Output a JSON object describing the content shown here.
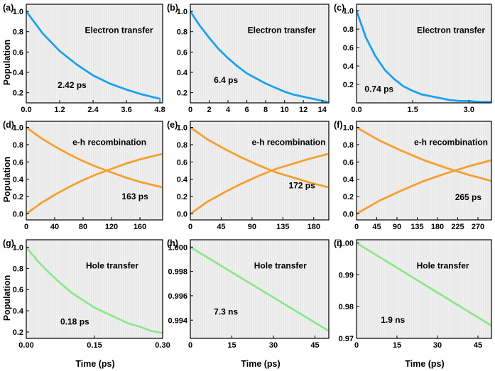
{
  "colors": {
    "electron": "#1ea1f0",
    "eh": "#f5a030",
    "hole": "#8ee68e",
    "plot_bg": "#f1f1f1",
    "grid": "#d2d2d2"
  },
  "figure": {
    "ylabel": "Population",
    "xlabel": "Time (ps)"
  },
  "chart_data": [
    {
      "label": "(a)",
      "type": "line",
      "title": "Electron transfer",
      "annotation": "2.42 ps",
      "xlim": [
        0,
        4.9
      ],
      "ylim": [
        0.1,
        1.07
      ],
      "xticks": [
        "0.0",
        "1.2",
        "2.4",
        "3.6",
        "4.8"
      ],
      "xtick_values": [
        0,
        1.2,
        2.4,
        3.6,
        4.8
      ],
      "yticks": [
        "0.2",
        "0.4",
        "0.6",
        "0.8",
        "1.0"
      ],
      "ytick_values": [
        0.2,
        0.4,
        0.6,
        0.8,
        1.0
      ],
      "series": [
        {
          "x": [
            0,
            0.6,
            1.2,
            1.8,
            2.4,
            3.0,
            3.6,
            4.2,
            4.8
          ],
          "y": [
            1.0,
            0.78,
            0.61,
            0.48,
            0.37,
            0.29,
            0.23,
            0.18,
            0.14
          ],
          "color": "electron"
        }
      ]
    },
    {
      "label": "(b)",
      "type": "line",
      "title": "Electron transfer",
      "annotation": "6.4 ps",
      "xlim": [
        0,
        14.7
      ],
      "ylim": [
        0.1,
        1.07
      ],
      "xticks": [
        "0",
        "2",
        "4",
        "6",
        "8",
        "10",
        "12",
        "14"
      ],
      "xtick_values": [
        0,
        2,
        4,
        6,
        8,
        10,
        12,
        14
      ],
      "yticks": [
        "0.2",
        "0.4",
        "0.6",
        "0.8",
        "1.0"
      ],
      "ytick_values": [
        0.2,
        0.4,
        0.6,
        0.8,
        1.0
      ],
      "series": [
        {
          "x": [
            0,
            1,
            2,
            3,
            4,
            5,
            6,
            7,
            8,
            9,
            10,
            11,
            12,
            13,
            14,
            14.5
          ],
          "y": [
            1.0,
            0.86,
            0.74,
            0.63,
            0.54,
            0.46,
            0.39,
            0.34,
            0.29,
            0.25,
            0.21,
            0.18,
            0.16,
            0.14,
            0.12,
            0.11
          ],
          "color": "electron"
        }
      ]
    },
    {
      "label": "(c)",
      "type": "line",
      "title": "Electron transfer",
      "annotation": "0.74 ps",
      "xlim": [
        0,
        3.6
      ],
      "ylim": [
        0,
        1.07
      ],
      "xticks": [
        "0.0",
        "1.5",
        "3.0"
      ],
      "xtick_values": [
        0,
        1.5,
        3.0
      ],
      "yticks": [
        "0.2",
        "0.4",
        "0.6",
        "0.8",
        "1.0"
      ],
      "ytick_values": [
        0.2,
        0.4,
        0.6,
        0.8,
        1.0
      ],
      "series": [
        {
          "x": [
            0,
            0.25,
            0.5,
            0.75,
            1.0,
            1.25,
            1.5,
            1.75,
            2.0,
            2.25,
            2.5,
            2.75,
            3.0,
            3.25,
            3.5,
            3.6
          ],
          "y": [
            1.0,
            0.71,
            0.51,
            0.36,
            0.26,
            0.18,
            0.13,
            0.09,
            0.07,
            0.05,
            0.03,
            0.02,
            0.02,
            0.01,
            0.01,
            0.01
          ],
          "color": "electron"
        }
      ]
    },
    {
      "label": "(d)",
      "type": "line",
      "title": "e-h recombination",
      "annotation": "163 ps",
      "xlim": [
        0,
        192
      ],
      "ylim": [
        -0.07,
        1.07
      ],
      "xticks": [
        "0",
        "40",
        "80",
        "120",
        "160"
      ],
      "xtick_values": [
        0,
        40,
        80,
        120,
        160
      ],
      "yticks": [
        "0.0",
        "0.2",
        "0.4",
        "0.6",
        "0.8",
        "1.0"
      ],
      "ytick_values": [
        0,
        0.2,
        0.4,
        0.6,
        0.8,
        1.0
      ],
      "series": [
        {
          "x": [
            0,
            20,
            40,
            60,
            80,
            100,
            120,
            140,
            160,
            180,
            190
          ],
          "y": [
            1.0,
            0.88,
            0.78,
            0.69,
            0.61,
            0.54,
            0.48,
            0.42,
            0.37,
            0.33,
            0.31
          ],
          "color": "eh"
        },
        {
          "x": [
            0,
            20,
            40,
            60,
            80,
            100,
            120,
            140,
            160,
            180,
            190
          ],
          "y": [
            0.0,
            0.12,
            0.22,
            0.31,
            0.39,
            0.46,
            0.52,
            0.58,
            0.63,
            0.67,
            0.69
          ],
          "color": "eh"
        }
      ]
    },
    {
      "label": "(e)",
      "type": "line",
      "title": "e-h recombination",
      "annotation": "172 ps",
      "xlim": [
        0,
        202
      ],
      "ylim": [
        -0.07,
        1.07
      ],
      "xticks": [
        "0",
        "45",
        "90",
        "135",
        "180"
      ],
      "xtick_values": [
        0,
        45,
        90,
        135,
        180
      ],
      "yticks": [
        "0.0",
        "0.2",
        "0.4",
        "0.6",
        "0.8",
        "1.0"
      ],
      "ytick_values": [
        0,
        0.2,
        0.4,
        0.6,
        0.8,
        1.0
      ],
      "series": [
        {
          "x": [
            0,
            25,
            50,
            75,
            100,
            125,
            150,
            175,
            200
          ],
          "y": [
            1.0,
            0.86,
            0.75,
            0.65,
            0.56,
            0.48,
            0.42,
            0.36,
            0.31
          ],
          "color": "eh"
        },
        {
          "x": [
            0,
            25,
            50,
            75,
            100,
            125,
            150,
            175,
            200
          ],
          "y": [
            0.0,
            0.14,
            0.25,
            0.35,
            0.44,
            0.52,
            0.58,
            0.64,
            0.69
          ],
          "color": "eh"
        }
      ]
    },
    {
      "label": "(f)",
      "type": "line",
      "title": "e-h recombination",
      "annotation": "265 ps",
      "xlim": [
        0,
        300
      ],
      "ylim": [
        -0.07,
        1.07
      ],
      "xticks": [
        "0",
        "45",
        "90",
        "135",
        "180",
        "225",
        "270"
      ],
      "xtick_values": [
        0,
        45,
        90,
        135,
        180,
        225,
        270
      ],
      "yticks": [
        "0.0",
        "0.2",
        "0.4",
        "0.6",
        "0.8",
        "1.0"
      ],
      "ytick_values": [
        0,
        0.2,
        0.4,
        0.6,
        0.8,
        1.0
      ],
      "series": [
        {
          "x": [
            0,
            50,
            100,
            150,
            200,
            250,
            300
          ],
          "y": [
            1.0,
            0.85,
            0.73,
            0.62,
            0.53,
            0.45,
            0.38
          ],
          "color": "eh"
        },
        {
          "x": [
            0,
            50,
            100,
            150,
            200,
            250,
            300
          ],
          "y": [
            0.0,
            0.15,
            0.27,
            0.38,
            0.47,
            0.55,
            0.62
          ],
          "color": "eh"
        }
      ]
    },
    {
      "label": "(g)",
      "type": "line",
      "title": "Hole transfer",
      "annotation": "0.18 ps",
      "xlim": [
        0,
        0.3
      ],
      "ylim": [
        0.14,
        1.07
      ],
      "xticks": [
        "0.00",
        "0.15",
        "0.30"
      ],
      "xtick_values": [
        0,
        0.15,
        0.3
      ],
      "yticks": [
        "0.2",
        "0.4",
        "0.6",
        "0.8",
        "1.0"
      ],
      "ytick_values": [
        0.2,
        0.4,
        0.6,
        0.8,
        1.0
      ],
      "series": [
        {
          "x": [
            0,
            0.025,
            0.05,
            0.075,
            0.1,
            0.125,
            0.15,
            0.175,
            0.2,
            0.225,
            0.25,
            0.275,
            0.3
          ],
          "y": [
            1.0,
            0.87,
            0.76,
            0.66,
            0.57,
            0.5,
            0.43,
            0.38,
            0.33,
            0.28,
            0.25,
            0.21,
            0.19
          ],
          "color": "hole"
        }
      ]
    },
    {
      "label": "(h)",
      "type": "line",
      "title": "Hole transfer",
      "annotation": "7.3 ns",
      "xlim": [
        0,
        50
      ],
      "ylim": [
        0.9925,
        1.0006
      ],
      "xticks": [
        "0",
        "15",
        "30",
        "45"
      ],
      "xtick_values": [
        0,
        15,
        30,
        45
      ],
      "yticks": [
        "0.994",
        "0.996",
        "0.998",
        "1.000"
      ],
      "ytick_values": [
        0.994,
        0.996,
        0.998,
        1.0
      ],
      "series": [
        {
          "x": [
            0,
            50
          ],
          "y": [
            1.0,
            0.9931
          ],
          "color": "hole"
        }
      ]
    },
    {
      "label": "(i)",
      "type": "line",
      "title": "Hole transfer",
      "annotation": "1.9 ns",
      "xlim": [
        0,
        50
      ],
      "ylim": [
        0.97,
        1.001
      ],
      "xticks": [
        "0",
        "15",
        "30",
        "45"
      ],
      "xtick_values": [
        0,
        15,
        30,
        45
      ],
      "yticks": [
        "0.97",
        "0.98",
        "0.99",
        "1.00"
      ],
      "ytick_values": [
        0.97,
        0.98,
        0.99,
        1.0
      ],
      "series": [
        {
          "x": [
            0,
            50
          ],
          "y": [
            1.0,
            0.974
          ],
          "color": "hole"
        }
      ]
    }
  ]
}
